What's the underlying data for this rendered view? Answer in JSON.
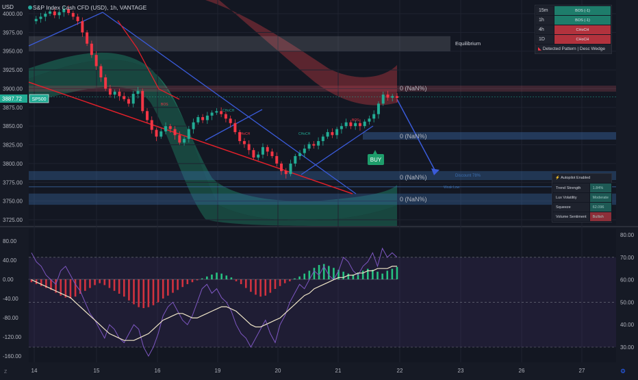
{
  "header": {
    "title": "S&P Index Cash CFD (USD), 1h, VANTAGE",
    "currency": "USD"
  },
  "price_badge": {
    "value": "3887.72",
    "symbol": "SP500"
  },
  "labels": {
    "equilibrium": "Equilibrium",
    "buy": "BUY",
    "discount": "Discount 78%",
    "weak_low": "Weak Low",
    "nan1": "0 (NaN%)",
    "nan2": "0 (NaN%)",
    "nan3": "0 (NaN%)",
    "nan4": "0 (NaN%)",
    "choch": "CHoCH",
    "bos": "BOS"
  },
  "mtf_table": {
    "rows": [
      {
        "tf": "15m",
        "status": "BOS (-1)",
        "color": "#1e7d6b"
      },
      {
        "tf": "1h",
        "status": "BOS (-1)",
        "color": "#1e7d6b"
      },
      {
        "tf": "4h",
        "status": "CHoCH",
        "color": "#b2323d"
      },
      {
        "tf": "1D",
        "status": "CHoCH",
        "color": "#b2323d"
      }
    ],
    "footer": "Detected Pattern | Desc Wedge"
  },
  "status_table": {
    "title": "Autopilot Enabled",
    "rows": [
      {
        "label": "Trend Strength",
        "value": "1.84%",
        "color": "#1e5a55"
      },
      {
        "label": "Lux Volatility",
        "value": "Moderate",
        "color": "#1e5a55"
      },
      {
        "label": "Squeeze",
        "value": "62.096",
        "color": "#1e5a55"
      },
      {
        "label": "Volume Sentiment",
        "value": "Bullish",
        "color": "#8c2f39"
      }
    ]
  },
  "colors": {
    "bull": "#22ab94",
    "bear": "#f23645",
    "wedge": "#3a5bd9",
    "trend": "#e0202a",
    "bg": "#161a25"
  },
  "chart_data": [
    {
      "type": "candlestick",
      "title": "S&P Index Cash CFD (USD), 1h, VANTAGE",
      "ylim": [
        3720,
        4010
      ],
      "yticks": [
        "4000.00",
        "3975.00",
        "3950.00",
        "3925.00",
        "3900.00",
        "3875.00",
        "3850.00",
        "3825.00",
        "3800.00",
        "3775.00",
        "3750.00",
        "3725.00"
      ],
      "y_tick_values": [
        4000,
        3975,
        3950,
        3925,
        3900,
        3875,
        3850,
        3825,
        3800,
        3775,
        3750,
        3725
      ],
      "x_ticks": [
        "14",
        "15",
        "16",
        "19",
        "20",
        "21",
        "22",
        "23",
        "26",
        "27"
      ],
      "last_price": 3887.72,
      "close_series": [
        3990,
        3993,
        3996,
        4000,
        4003,
        3998,
        4002,
        4006,
        4001,
        3996,
        3990,
        3975,
        3960,
        3945,
        3930,
        3915,
        3900,
        3892,
        3896,
        3890,
        3886,
        3880,
        3893,
        3897,
        3870,
        3858,
        3845,
        3836,
        3843,
        3850,
        3846,
        3838,
        3828,
        3833,
        3846,
        3855,
        3862,
        3858,
        3864,
        3868,
        3870,
        3866,
        3860,
        3854,
        3842,
        3830,
        3826,
        3818,
        3808,
        3812,
        3822,
        3816,
        3810,
        3800,
        3790,
        3786,
        3800,
        3810,
        3814,
        3820,
        3826,
        3824,
        3830,
        3836,
        3842,
        3838,
        3846,
        3850,
        3855,
        3850,
        3854,
        3850,
        3856,
        3860,
        3866,
        3880,
        3892,
        3888,
        3890,
        3887.72
      ],
      "zones": [
        {
          "label": "Equilibrium",
          "top": 3970,
          "bottom": 3950
        },
        {
          "label": "0 (NaN%)",
          "top": 3904,
          "bottom": 3896
        },
        {
          "label": "0 (NaN%)",
          "top": 3842,
          "bottom": 3832
        },
        {
          "label": "0 (NaN%)",
          "top": 3790,
          "bottom": 3778
        },
        {
          "label": "0 (NaN%)",
          "top": 3760,
          "bottom": 3745
        }
      ]
    },
    {
      "type": "oscillator",
      "left_yticks": [
        "80.00",
        "40.00",
        "0.00",
        "-40.00",
        "-80.00",
        "-120.00",
        "-160.00"
      ],
      "left_tick_values": [
        80,
        40,
        0,
        -40,
        -80,
        -120,
        -160
      ],
      "left_ylim": [
        -170,
        100
      ],
      "right_yticks": [
        "80.00",
        "70.00",
        "60.00",
        "50.00",
        "40.00",
        "30.00"
      ],
      "right_tick_values": [
        80,
        70,
        60,
        50,
        40,
        30
      ],
      "right_ylim": [
        27,
        83
      ],
      "histogram": [
        -6,
        -10,
        -14,
        -18,
        -22,
        -28,
        -34,
        -38,
        -40,
        -36,
        -30,
        -24,
        -18,
        -12,
        -8,
        -12,
        -18,
        -24,
        -30,
        -36,
        -44,
        -52,
        -58,
        -60,
        -58,
        -54,
        -48,
        -40,
        -34,
        -28,
        -22,
        -16,
        -10,
        -6,
        -2,
        2,
        6,
        10,
        14,
        12,
        8,
        4,
        -4,
        -10,
        -18,
        -26,
        -32,
        -36,
        -34,
        -28,
        -20,
        -14,
        -8,
        -4,
        2,
        6,
        12,
        18,
        24,
        30,
        32,
        28,
        24,
        20,
        16,
        12,
        10,
        14,
        18,
        22,
        20,
        16,
        12,
        18,
        22,
        26
      ],
      "rsi": [
        72,
        68,
        66,
        62,
        60,
        58,
        64,
        66,
        62,
        58,
        55,
        50,
        45,
        42,
        38,
        34,
        40,
        38,
        34,
        32,
        36,
        40,
        38,
        30,
        26,
        30,
        36,
        44,
        48,
        50,
        46,
        42,
        40,
        44,
        50,
        56,
        58,
        54,
        56,
        52,
        50,
        46,
        40,
        36,
        34,
        30,
        34,
        38,
        42,
        36,
        32,
        40,
        44,
        50,
        54,
        58,
        56,
        60,
        64,
        62,
        66,
        62,
        60,
        64,
        70,
        68,
        64,
        62,
        66,
        68,
        72,
        66,
        74,
        70,
        72,
        70
      ],
      "rsi_ma": [
        60,
        59,
        58,
        57,
        56,
        55,
        54,
        53,
        52,
        50,
        48,
        46,
        44,
        42,
        40,
        38,
        36,
        35,
        34,
        33,
        33,
        33,
        34,
        35,
        36,
        38,
        40,
        42,
        43,
        44,
        45,
        45,
        44,
        43,
        43,
        44,
        45,
        46,
        47,
        48,
        48,
        47,
        46,
        44,
        42,
        40,
        39,
        39,
        40,
        41,
        42,
        43,
        45,
        47,
        49,
        51,
        53,
        54,
        56,
        57,
        58,
        59,
        60,
        61,
        61,
        62,
        62,
        63,
        63,
        64,
        64,
        65,
        65,
        65,
        66,
        66
      ]
    }
  ]
}
